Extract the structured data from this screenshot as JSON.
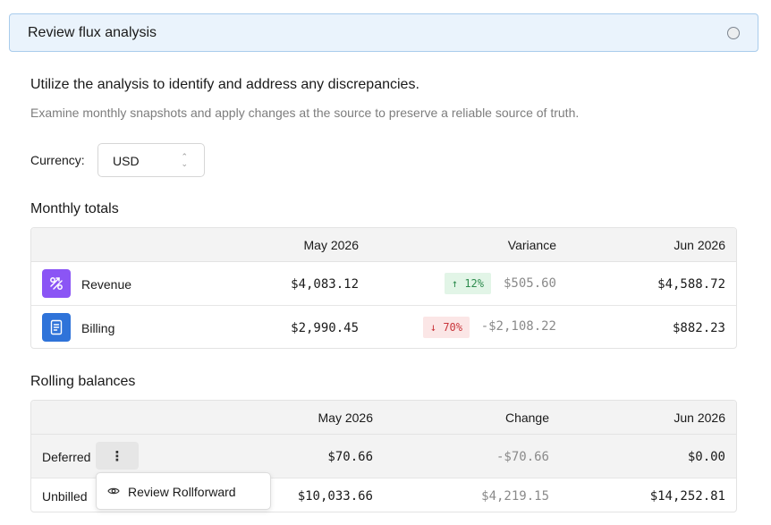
{
  "step": {
    "title": "Review flux analysis"
  },
  "intro": {
    "headline": "Utilize the analysis to identify and address any discrepancies.",
    "subtext": "Examine monthly snapshots and apply changes at the source to preserve a reliable source of truth."
  },
  "currency": {
    "label": "Currency:",
    "value": "USD"
  },
  "monthly": {
    "title": "Monthly totals",
    "columns": {
      "prior": "May 2026",
      "variance": "Variance",
      "current": "Jun 2026"
    },
    "rows": [
      {
        "label": "Revenue",
        "icon": "revenue-icon",
        "icon_color": "#8b55f5",
        "prior": "$4,083.12",
        "direction": "up",
        "pct": "12%",
        "variance": "$505.60",
        "current": "$4,588.72"
      },
      {
        "label": "Billing",
        "icon": "billing-icon",
        "icon_color": "#2f73d9",
        "prior": "$2,990.45",
        "direction": "down",
        "pct": "70%",
        "variance": "-$2,108.22",
        "current": "$882.23"
      }
    ]
  },
  "rolling": {
    "title": "Rolling balances",
    "columns": {
      "prior": "May 2026",
      "change": "Change",
      "current": "Jun 2026"
    },
    "rows": [
      {
        "label": "Deferred",
        "prior": "$70.66",
        "change": "-$70.66",
        "current": "$0.00"
      },
      {
        "label": "Unbilled",
        "prior": "$10,033.66",
        "change": "$4,219.15",
        "current": "$14,252.81"
      }
    ]
  },
  "menu": {
    "item_label": "Review Rollforward",
    "icon": "eye-icon"
  },
  "colors": {
    "accent_bg": "#eaf3fc",
    "accent_border": "#a9ccec",
    "positive": "#2e8b4e",
    "negative": "#c9353b"
  }
}
